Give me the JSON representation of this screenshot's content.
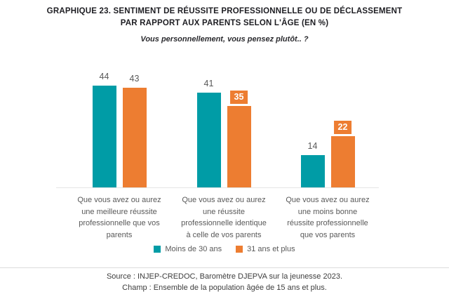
{
  "header": {
    "title_line1": "GRAPHIQUE 23. SENTIMENT DE RÉUSSITE PROFESSIONNELLE OU DE DÉCLASSEMENT",
    "title_line2": "PAR RAPPORT AUX PARENTS SELON L'ÂGE (EN %)",
    "subtitle": "Vous personnellement, vous pensez plutôt.. ?"
  },
  "chart_data": {
    "type": "bar",
    "title": "GRAPHIQUE 23. SENTIMENT DE RÉUSSITE PROFESSIONNELLE OU DE DÉCLASSEMENT PAR RAPPORT AUX PARENTS SELON L'ÂGE (EN %)",
    "subtitle": "Vous personnellement, vous pensez plutôt.. ?",
    "categories": [
      "Que vous avez ou aurez une meilleure réussite professionnelle que vos parents",
      "Que vous avez ou aurez une réussite professionnelle identique à celle de vos parents",
      "Que vous avez ou aurez une moins bonne réussite professionnelle que vos parents"
    ],
    "categories_lines": [
      [
        "Que vous avez ou aurez",
        "une meilleure réussite",
        "professionnelle que vos",
        "parents"
      ],
      [
        "Que vous avez ou aurez",
        "une réussite",
        "professionnelle identique",
        "à celle de vos parents"
      ],
      [
        "Que vous avez ou aurez",
        "une moins bonne",
        "réussite professionnelle",
        "que vos parents"
      ]
    ],
    "series": [
      {
        "name": "Moins de 30 ans",
        "color": "#009CA6",
        "values": [
          44,
          41,
          14
        ],
        "label_styles": [
          "plain",
          "plain",
          "plain"
        ]
      },
      {
        "name": "31 ans et plus",
        "color": "#ED7D31",
        "values": [
          43,
          35,
          22
        ],
        "label_styles": [
          "plain",
          "badge",
          "badge"
        ]
      }
    ],
    "ylim": [
      0,
      50
    ],
    "grid": false,
    "legend_position": "bottom",
    "value_labels": true,
    "colors": {
      "value_label": "#595959",
      "badge_text": "#FFFFFF",
      "axis_line": "#E4E4E4"
    }
  },
  "footer": {
    "source": "Source : INJEP-CREDOC, Baromètre DJEPVA sur la jeunesse 2023.",
    "champ": "Champ : Ensemble de la population âgée de 15 ans et plus."
  }
}
